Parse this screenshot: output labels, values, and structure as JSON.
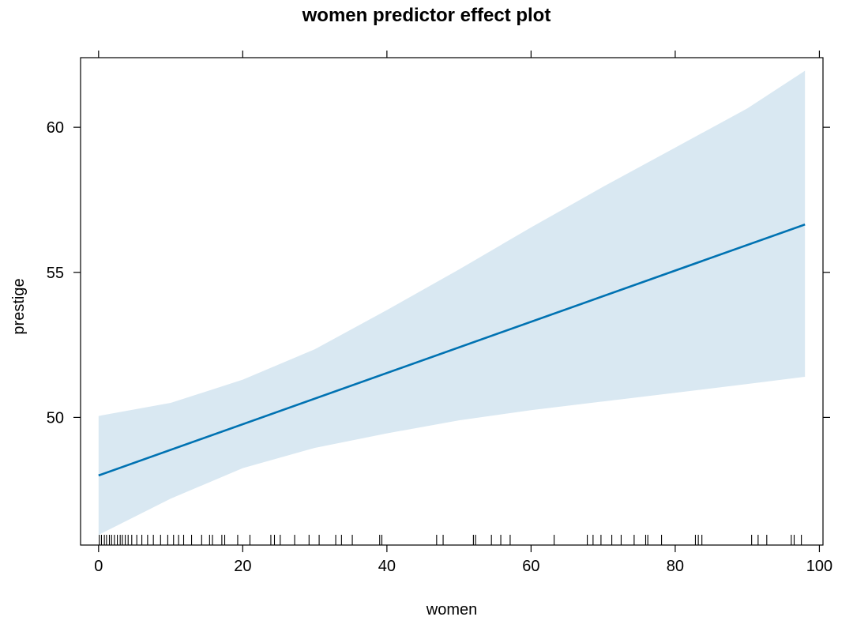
{
  "chart_data": {
    "type": "line",
    "title": "women predictor effect plot",
    "xlabel": "women",
    "ylabel": "prestige",
    "xlim": [
      -2.5,
      100.5
    ],
    "ylim": [
      45.6,
      62.4
    ],
    "x_ticks": [
      0,
      20,
      40,
      60,
      80,
      100
    ],
    "x_tick_labels": [
      "0",
      "20",
      "40",
      "60",
      "80",
      "100"
    ],
    "y_ticks": [
      50,
      55,
      60
    ],
    "y_tick_labels": [
      "50",
      "55",
      "60"
    ],
    "grid": false,
    "colors": {
      "line": "#0072b2",
      "band": "#d9e8f2",
      "frame": "#000000"
    },
    "series": [
      {
        "x": [
          0,
          98
        ],
        "y": [
          48.0,
          56.65
        ]
      }
    ],
    "confidence_band": {
      "x": [
        0,
        10,
        20,
        30,
        40,
        50,
        60,
        70,
        80,
        90,
        98
      ],
      "upper": [
        50.05,
        50.5,
        51.3,
        52.35,
        53.7,
        55.1,
        56.55,
        57.95,
        59.3,
        60.65,
        61.95
      ],
      "lower": [
        45.95,
        47.2,
        48.25,
        48.95,
        49.45,
        49.9,
        50.25,
        50.55,
        50.85,
        51.15,
        51.4
      ]
    },
    "rug": [
      0.1,
      0.4,
      0.8,
      1.1,
      1.5,
      1.8,
      2.2,
      2.6,
      3.0,
      3.3,
      3.7,
      4.1,
      4.6,
      5.3,
      6.0,
      6.8,
      7.6,
      8.6,
      9.6,
      10.4,
      11.1,
      11.8,
      12.9,
      14.3,
      15.4,
      15.8,
      17.1,
      17.5,
      19.3,
      21.0,
      23.9,
      24.4,
      25.2,
      27.2,
      29.2,
      30.6,
      32.9,
      33.7,
      35.2,
      39.0,
      39.3,
      46.9,
      47.8,
      52.0,
      52.3,
      54.5,
      55.8,
      57.1,
      63.2,
      67.8,
      68.6,
      69.7,
      71.2,
      72.5,
      74.3,
      75.9,
      76.2,
      78.1,
      82.8,
      83.2,
      83.7,
      90.6,
      91.5,
      92.7,
      96.1,
      96.5,
      97.5
    ]
  }
}
